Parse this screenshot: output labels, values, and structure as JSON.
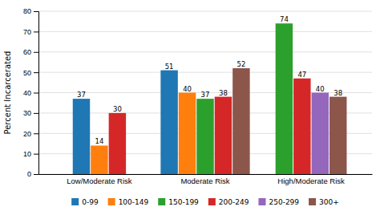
{
  "chart_data": {
    "type": "bar",
    "y_label": "Percent Incarcerated",
    "categories": [
      "Low/Moderate Risk",
      "Moderate Risk",
      "High/Moderate Risk"
    ],
    "series": [
      {
        "name": "0-99",
        "values": [
          37,
          51,
          null
        ]
      },
      {
        "name": "100-149",
        "values": [
          14,
          40,
          null
        ]
      },
      {
        "name": "150-199",
        "values": [
          null,
          37,
          74
        ]
      },
      {
        "name": "200-249",
        "values": [
          30,
          38,
          47
        ]
      },
      {
        "name": "250-299",
        "values": [
          null,
          null,
          40
        ]
      },
      {
        "name": "300+",
        "values": [
          null,
          52,
          38
        ]
      }
    ],
    "ylim": [
      0,
      80
    ],
    "yticks": [
      0,
      10,
      20,
      30,
      40,
      50,
      60,
      70,
      80
    ],
    "grid": true,
    "data_labels": true,
    "legend": "bottom"
  }
}
